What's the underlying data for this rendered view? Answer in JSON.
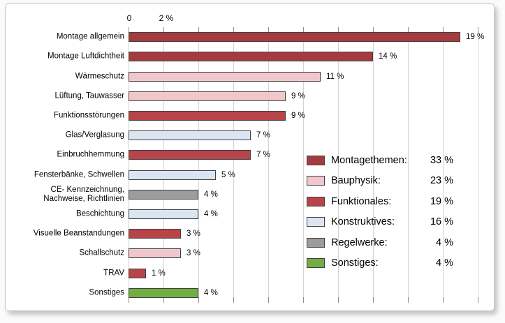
{
  "chart_data": {
    "type": "bar",
    "orientation": "horizontal",
    "title": "",
    "x_axis": {
      "unit": "%",
      "range": [
        0,
        20
      ],
      "gridline_step": 2,
      "ticks": [
        {
          "pct": 0,
          "label": "0"
        },
        {
          "pct": 2,
          "label": "2 %"
        }
      ]
    },
    "grid": "on",
    "group_colors": {
      "montagethemen": "#A53B3F",
      "bauphysik": "#F0C8CC",
      "funktionales": "#B74449",
      "konstruktives": "#DBE5F1",
      "regelwerke": "#9C9C9C",
      "sonstiges": "#72AE43"
    },
    "bar_border_color": "#404040",
    "bars": [
      {
        "label": "Montage allgemein",
        "value": 19,
        "value_label": "19 %",
        "group": "montagethemen"
      },
      {
        "label": "Montage Luftdichtheit",
        "value": 14,
        "value_label": "14 %",
        "group": "montagethemen"
      },
      {
        "label": "Wärmeschutz",
        "value": 11,
        "value_label": "11 %",
        "group": "bauphysik"
      },
      {
        "label": "Lüftung, Tauwasser",
        "value": 9,
        "value_label": "9 %",
        "group": "bauphysik"
      },
      {
        "label": "Funktionsstörungen",
        "value": 9,
        "value_label": "9 %",
        "group": "funktionales"
      },
      {
        "label": "Glas/Verglasung",
        "value": 7,
        "value_label": "7 %",
        "group": "konstruktives"
      },
      {
        "label": "Einbruchhemmung",
        "value": 7,
        "value_label": "7 %",
        "group": "funktionales"
      },
      {
        "label": "Fensterbänke, Schwellen",
        "value": 5,
        "value_label": "5 %",
        "group": "konstruktives"
      },
      {
        "label": "CE- Kennzeichnung,\nNachweise, Richtlinien",
        "value": 4,
        "value_label": "4 %",
        "group": "regelwerke"
      },
      {
        "label": "Beschichtung",
        "value": 4,
        "value_label": "4 %",
        "group": "konstruktives"
      },
      {
        "label": "Visuelle Beanstandungen",
        "value": 3,
        "value_label": "3 %",
        "group": "funktionales"
      },
      {
        "label": "Schallschutz",
        "value": 3,
        "value_label": "3 %",
        "group": "bauphysik"
      },
      {
        "label": "TRAV",
        "value": 1,
        "value_label": "1 %",
        "group": "funktionales"
      },
      {
        "label": "Sonstiges",
        "value": 4,
        "value_label": "4 %",
        "group": "sonstiges"
      }
    ],
    "legend": {
      "position": "right-middle-overlay",
      "items": [
        {
          "label": "Montagethemen:",
          "value_label": "33 %",
          "group": "montagethemen"
        },
        {
          "label": "Bauphysik:",
          "value_label": "23 %",
          "group": "bauphysik"
        },
        {
          "label": "Funktionales:",
          "value_label": "19 %",
          "group": "funktionales"
        },
        {
          "label": "Konstruktives:",
          "value_label": "16 %",
          "group": "konstruktives"
        },
        {
          "label": "Regelwerke:",
          "value_label": "4 %",
          "group": "regelwerke"
        },
        {
          "label": "Sonstiges:",
          "value_label": "4 %",
          "group": "sonstiges"
        }
      ]
    }
  }
}
